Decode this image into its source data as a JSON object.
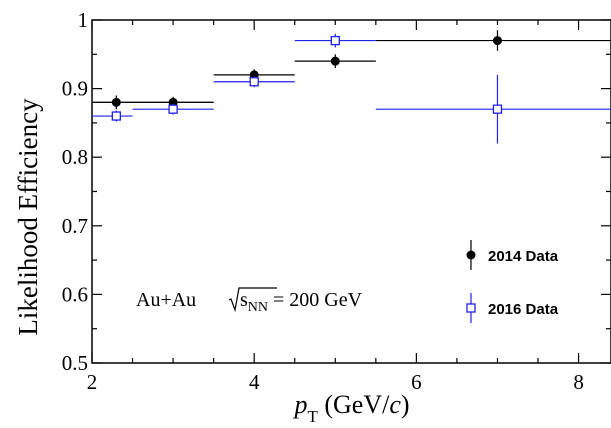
{
  "chart_data": {
    "type": "scatter",
    "xlabel_italic": "p",
    "xlabel_sub": "T",
    "xlabel_rest": " (GeV/",
    "xlabel_italic_c": "c",
    "xlabel_close": ")",
    "ylabel": "Likelihood Efficiency",
    "xlim": [
      2,
      8.4
    ],
    "ylim": [
      0.5,
      1.0
    ],
    "xticks": [
      2,
      4,
      6,
      8
    ],
    "xtick_labels": [
      "2",
      "4",
      "6",
      "8"
    ],
    "yticks": [
      0.5,
      0.6,
      0.7,
      0.8,
      0.9,
      1.0
    ],
    "ytick_labels": [
      "0.5",
      "0.6",
      "0.7",
      "0.8",
      "0.9",
      "1"
    ],
    "annotation": {
      "prefix": "Au+Au ",
      "sqrt_s": "s",
      "sqrt_sub": "NN",
      "suffix": " = 200 GeV"
    },
    "legend_position": "right",
    "series": [
      {
        "name": "2014 Data",
        "marker": "filled-circle",
        "color": "#000000",
        "points": [
          {
            "x": 2.3,
            "y": 0.88,
            "xlo": 2.0,
            "xhi": 3.5,
            "yerr": 0.01
          },
          {
            "x": 3.0,
            "y": 0.88,
            "xlo": 2.0,
            "xhi": 3.5,
            "yerr": 0.008
          },
          {
            "x": 4.0,
            "y": 0.92,
            "xlo": 3.5,
            "xhi": 4.5,
            "yerr": 0.008
          },
          {
            "x": 5.0,
            "y": 0.94,
            "xlo": 4.5,
            "xhi": 5.5,
            "yerr": 0.01
          },
          {
            "x": 7.0,
            "y": 0.97,
            "xlo": 5.5,
            "xhi": 8.4,
            "yerr": 0.015
          }
        ]
      },
      {
        "name": "2016 Data",
        "marker": "open-square",
        "color": "#2020ee",
        "points": [
          {
            "x": 2.3,
            "y": 0.86,
            "xlo": 2.0,
            "xhi": 2.5,
            "yerr": 0.008
          },
          {
            "x": 3.0,
            "y": 0.87,
            "xlo": 2.5,
            "xhi": 3.5,
            "yerr": 0.008
          },
          {
            "x": 4.0,
            "y": 0.91,
            "xlo": 3.5,
            "xhi": 4.5,
            "yerr": 0.008
          },
          {
            "x": 5.0,
            "y": 0.97,
            "xlo": 4.5,
            "xhi": 5.5,
            "yerr": 0.01
          },
          {
            "x": 7.0,
            "y": 0.87,
            "xlo": 5.5,
            "xhi": 8.4,
            "yerr": 0.05
          }
        ]
      }
    ]
  }
}
